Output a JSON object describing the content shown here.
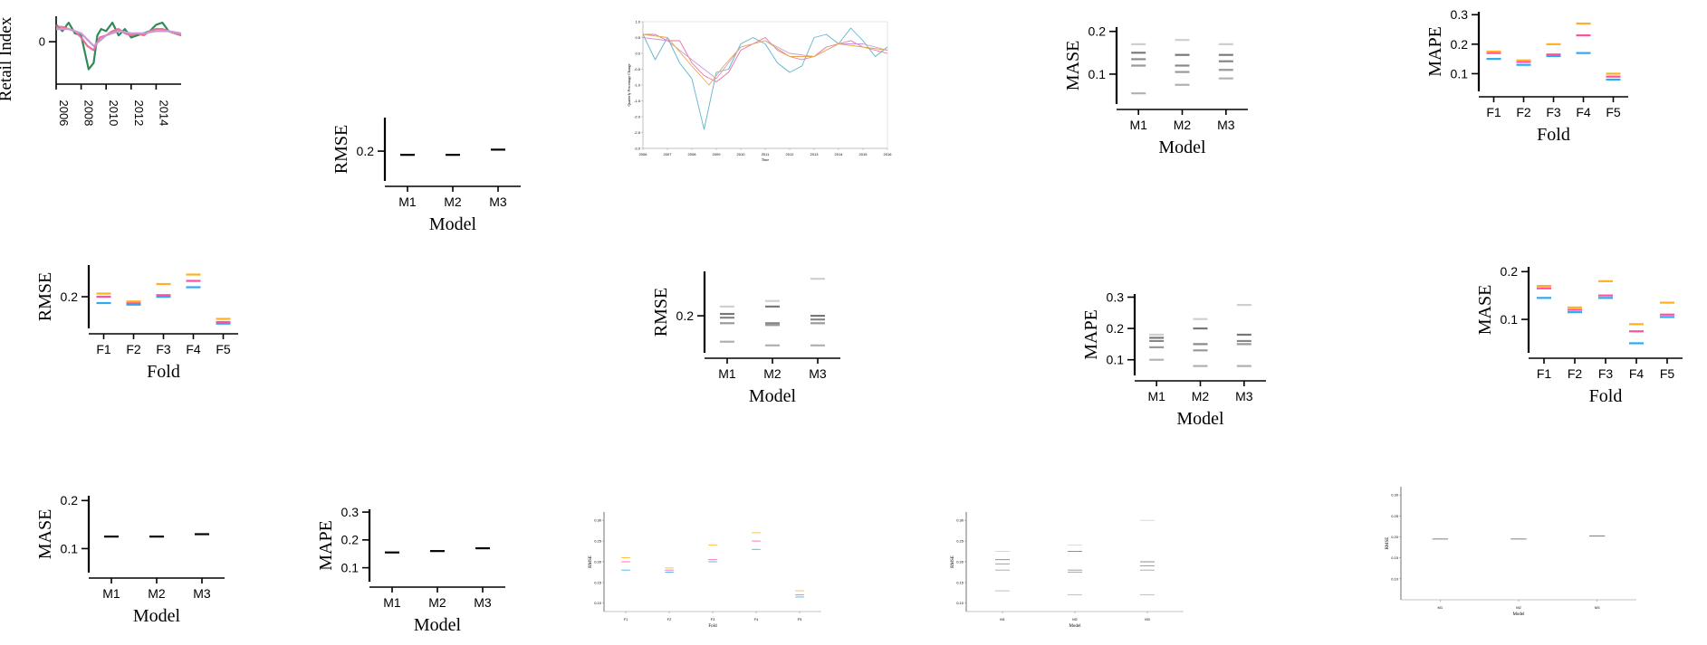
{
  "colors": {
    "fold": {
      "F1": "#ff4fa3",
      "F2": "#a15be0",
      "F3": "#ff6b6b",
      "F4": "#ffb020",
      "F5": "#2eaaf0"
    },
    "series": [
      "#2e8b57",
      "#e8709a",
      "#c79ad6",
      "#e6a94a",
      "#5fb3c9"
    ],
    "gray": [
      "#b0b0b0",
      "#9a9a9a",
      "#888888",
      "#777777",
      "#cfcfcf"
    ],
    "axis": "#000000"
  },
  "chart_data": [
    {
      "id": "ts-main",
      "type": "line",
      "ylabel": "Retail Index",
      "x_ticks": [
        "2006",
        "2008",
        "2010",
        "2012",
        "2014"
      ],
      "y_ticks": [
        "0"
      ],
      "xlim": [
        2006,
        2016
      ],
      "ylim": [
        -2,
        1.2
      ],
      "series": [
        {
          "color": "#2e8b57",
          "x": [
            2006,
            2006.5,
            2007,
            2007.5,
            2008,
            2008.3,
            2008.6,
            2009,
            2009.3,
            2009.6,
            2010,
            2010.5,
            2011,
            2011.5,
            2012,
            2012.5,
            2013,
            2013.5,
            2014,
            2014.5,
            2015,
            2015.5,
            2016
          ],
          "y": [
            0.8,
            0.5,
            0.9,
            0.4,
            0.3,
            -0.5,
            -1.3,
            -1.0,
            0.3,
            0.6,
            0.5,
            0.9,
            0.3,
            0.6,
            0.2,
            0.3,
            0.4,
            0.5,
            0.8,
            0.9,
            0.5,
            0.4,
            0.3
          ]
        },
        {
          "color": "#e8709a",
          "x": [
            2006,
            2006.5,
            2007,
            2007.5,
            2008,
            2008.5,
            2009,
            2009.5,
            2010,
            2010.5,
            2011,
            2011.5,
            2012,
            2012.5,
            2013,
            2013.5,
            2014,
            2014.5,
            2015,
            2015.5,
            2016
          ],
          "y": [
            0.7,
            0.7,
            0.6,
            0.5,
            0.2,
            -0.2,
            -0.4,
            0.2,
            0.3,
            0.5,
            0.6,
            0.4,
            0.3,
            0.4,
            0.3,
            0.5,
            0.6,
            0.6,
            0.5,
            0.4,
            0.3
          ]
        },
        {
          "color": "#c79ad6",
          "x": [
            2006,
            2007,
            2008,
            2009,
            2010,
            2011,
            2012,
            2013,
            2014,
            2015,
            2016
          ],
          "y": [
            0.6,
            0.6,
            0.4,
            -0.2,
            0.3,
            0.5,
            0.4,
            0.4,
            0.5,
            0.5,
            0.4
          ]
        }
      ]
    },
    {
      "id": "ts-small",
      "type": "line",
      "xlabel": "Time",
      "ylabel": "Quarterly Percentage Change",
      "x_ticks": [
        "2006",
        "2007",
        "2008",
        "2009",
        "2010",
        "2011",
        "2012",
        "2013",
        "2014",
        "2015",
        "2016"
      ],
      "y_ticks": [
        "1.0",
        "0.5",
        "0.0",
        "-0.5",
        "-1.0",
        "-1.5",
        "-2.0",
        "-2.5",
        "-3.0"
      ],
      "xlim": [
        2006,
        2016
      ],
      "ylim": [
        -3,
        1
      ],
      "series": [
        {
          "color": "#5fb3c9",
          "x": [
            2006,
            2006.5,
            2007,
            2007.5,
            2008,
            2008.5,
            2009,
            2009.5,
            2010,
            2010.5,
            2011,
            2011.5,
            2012,
            2012.5,
            2013,
            2013.5,
            2014,
            2014.5,
            2015,
            2015.5,
            2016
          ],
          "y": [
            0.6,
            -0.2,
            0.5,
            -0.3,
            -0.8,
            -2.4,
            -0.6,
            -0.5,
            0.3,
            0.5,
            0.3,
            -0.3,
            -0.6,
            -0.4,
            0.5,
            0.6,
            0.3,
            0.8,
            0.4,
            -0.1,
            0.2
          ]
        },
        {
          "color": "#e8709a",
          "x": [
            2006,
            2006.5,
            2007,
            2007.5,
            2008,
            2008.5,
            2009,
            2009.5,
            2010,
            2010.5,
            2011,
            2011.5,
            2012,
            2012.5,
            2013,
            2013.5,
            2014,
            2014.5,
            2015,
            2015.5,
            2016
          ],
          "y": [
            0.6,
            0.6,
            0.4,
            0.4,
            -0.3,
            -0.7,
            -0.9,
            -0.6,
            0.1,
            0.3,
            0.5,
            0.1,
            -0.1,
            -0.2,
            -0.1,
            0.2,
            0.3,
            0.4,
            0.2,
            0.1,
            0.0
          ]
        },
        {
          "color": "#c79ad6",
          "x": [
            2006,
            2007,
            2008,
            2009,
            2010,
            2011,
            2012,
            2013,
            2014,
            2015,
            2016
          ],
          "y": [
            0.5,
            0.4,
            -0.2,
            -0.8,
            0.2,
            0.4,
            0.0,
            -0.1,
            0.3,
            0.3,
            0.1
          ]
        },
        {
          "color": "#e6a94a",
          "x": [
            2006,
            2007,
            2008,
            2008.7,
            2009.3,
            2010,
            2011,
            2012,
            2013,
            2014,
            2015,
            2016
          ],
          "y": [
            0.6,
            0.5,
            -0.4,
            -1.0,
            -0.4,
            0.2,
            0.4,
            -0.1,
            -0.1,
            0.3,
            0.2,
            0.1
          ]
        }
      ]
    },
    {
      "id": "rmse-model-mean",
      "type": "scatter",
      "xlabel": "Model",
      "ylabel": "RMSE",
      "categories": [
        "M1",
        "M2",
        "M3"
      ],
      "y_ticks": [
        "0.2"
      ],
      "ylim": [
        0.16,
        0.245
      ],
      "series": [
        {
          "values": [
            0.195,
            0.195,
            0.202
          ]
        }
      ]
    },
    {
      "id": "mase-model-gray",
      "type": "scatter",
      "xlabel": "Model",
      "ylabel": "MASE",
      "categories": [
        "M1",
        "M2",
        "M3"
      ],
      "y_ticks": [
        "0.1",
        "0.2"
      ],
      "ylim": [
        0.03,
        0.21
      ],
      "series": [
        {
          "values": [
            [
              0.055,
              0.12,
              0.135,
              0.15,
              0.17
            ],
            [
              0.075,
              0.105,
              0.12,
              0.145,
              0.18
            ],
            [
              0.09,
              0.11,
              0.13,
              0.145,
              0.17
            ]
          ]
        }
      ]
    },
    {
      "id": "mape-fold-colored",
      "type": "scatter",
      "xlabel": "Fold",
      "ylabel": "MAPE",
      "categories": [
        "F1",
        "F2",
        "F3",
        "F4",
        "F5"
      ],
      "y_ticks": [
        "0.1",
        "0.2",
        "0.3"
      ],
      "ylim": [
        0.04,
        0.31
      ],
      "series": [
        {
          "values": [
            [
              0.15,
              0.17,
              0.175
            ],
            [
              0.13,
              0.14,
              0.145
            ],
            [
              0.16,
              0.165,
              0.2
            ],
            [
              0.17,
              0.23,
              0.27
            ],
            [
              0.08,
              0.09,
              0.1
            ]
          ]
        }
      ]
    },
    {
      "id": "rmse-fold-colored",
      "type": "scatter",
      "xlabel": "Fold",
      "ylabel": "RMSE",
      "categories": [
        "F1",
        "F2",
        "F3",
        "F4",
        "F5"
      ],
      "y_ticks": [
        "0.2"
      ],
      "ylim": [
        0.1,
        0.3
      ],
      "series": [
        {
          "values": [
            [
              0.18,
              0.2,
              0.21
            ],
            [
              0.175,
              0.18,
              0.185
            ],
            [
              0.2,
              0.205,
              0.24
            ],
            [
              0.23,
              0.25,
              0.27
            ],
            [
              0.115,
              0.12,
              0.13
            ]
          ]
        }
      ]
    },
    {
      "id": "rmse-model-gray",
      "type": "scatter",
      "xlabel": "Model",
      "ylabel": "RMSE",
      "categories": [
        "M1",
        "M2",
        "M3"
      ],
      "y_ticks": [
        "0.2"
      ],
      "ylim": [
        0.1,
        0.32
      ],
      "series": [
        {
          "values": [
            [
              0.13,
              0.18,
              0.195,
              0.205,
              0.225
            ],
            [
              0.12,
              0.175,
              0.18,
              0.225,
              0.24
            ],
            [
              0.12,
              0.18,
              0.19,
              0.2,
              0.3
            ]
          ]
        }
      ]
    },
    {
      "id": "mape-model-gray",
      "type": "scatter",
      "xlabel": "Model",
      "ylabel": "MAPE",
      "categories": [
        "M1",
        "M2",
        "M3"
      ],
      "y_ticks": [
        "0.1",
        "0.2",
        "0.3"
      ],
      "ylim": [
        0.05,
        0.31
      ],
      "series": [
        {
          "values": [
            [
              0.1,
              0.14,
              0.16,
              0.17,
              0.18
            ],
            [
              0.08,
              0.13,
              0.15,
              0.2,
              0.23
            ],
            [
              0.08,
              0.15,
              0.16,
              0.18,
              0.275
            ]
          ]
        }
      ]
    },
    {
      "id": "mase-fold-colored",
      "type": "scatter",
      "xlabel": "Fold",
      "ylabel": "MASE",
      "categories": [
        "F1",
        "F2",
        "F3",
        "F4",
        "F5"
      ],
      "y_ticks": [
        "0.1",
        "0.2"
      ],
      "ylim": [
        0.03,
        0.21
      ],
      "series": [
        {
          "values": [
            [
              0.145,
              0.165,
              0.17
            ],
            [
              0.115,
              0.12,
              0.125
            ],
            [
              0.145,
              0.15,
              0.18
            ],
            [
              0.05,
              0.075,
              0.09
            ],
            [
              0.105,
              0.11,
              0.135
            ]
          ]
        }
      ]
    },
    {
      "id": "mase-model-mean",
      "type": "scatter",
      "xlabel": "Model",
      "ylabel": "MASE",
      "categories": [
        "M1",
        "M2",
        "M3"
      ],
      "y_ticks": [
        "0.1",
        "0.2"
      ],
      "ylim": [
        0.05,
        0.21
      ],
      "series": [
        {
          "values": [
            0.125,
            0.125,
            0.13
          ]
        }
      ]
    },
    {
      "id": "mape-model-mean",
      "type": "scatter",
      "xlabel": "Model",
      "ylabel": "MAPE",
      "categories": [
        "M1",
        "M2",
        "M3"
      ],
      "y_ticks": [
        "0.1",
        "0.2",
        "0.3"
      ],
      "ylim": [
        0.05,
        0.31
      ],
      "series": [
        {
          "values": [
            0.155,
            0.16,
            0.17
          ]
        }
      ]
    },
    {
      "id": "rmse-fold-small",
      "type": "scatter",
      "xlabel": "Fold",
      "ylabel": "RMSE",
      "categories": [
        "F1",
        "F2",
        "F3",
        "F4",
        "F5"
      ],
      "y_ticks": [
        "0.30",
        "0.25",
        "0.20",
        "0.15",
        "0.10"
      ],
      "ylim": [
        0.08,
        0.32
      ],
      "series": [
        {
          "values": [
            [
              0.18,
              0.2,
              0.21
            ],
            [
              0.175,
              0.18,
              0.185
            ],
            [
              0.2,
              0.205,
              0.24
            ],
            [
              0.23,
              0.25,
              0.27
            ],
            [
              0.115,
              0.12,
              0.13
            ]
          ]
        }
      ]
    },
    {
      "id": "rmse-model-small",
      "type": "scatter",
      "xlabel": "Model",
      "ylabel": "RMSE",
      "categories": [
        "M1",
        "M2",
        "M3"
      ],
      "y_ticks": [
        "0.30",
        "0.25",
        "0.20",
        "0.15",
        "0.10"
      ],
      "ylim": [
        0.08,
        0.32
      ],
      "series": [
        {
          "values": [
            [
              0.13,
              0.18,
              0.195,
              0.205,
              0.225
            ],
            [
              0.12,
              0.175,
              0.18,
              0.225,
              0.24
            ],
            [
              0.12,
              0.18,
              0.19,
              0.2,
              0.3
            ]
          ]
        }
      ]
    },
    {
      "id": "rmse-model-mean-small",
      "type": "scatter",
      "xlabel": "Model",
      "ylabel": "RMSE",
      "categories": [
        "M1",
        "M2",
        "M3"
      ],
      "y_ticks": [
        "0.30",
        "0.25",
        "0.20",
        "0.15",
        "0.10"
      ],
      "ylim": [
        0.05,
        0.32
      ],
      "series": [
        {
          "values": [
            0.195,
            0.195,
            0.202
          ]
        }
      ]
    }
  ]
}
